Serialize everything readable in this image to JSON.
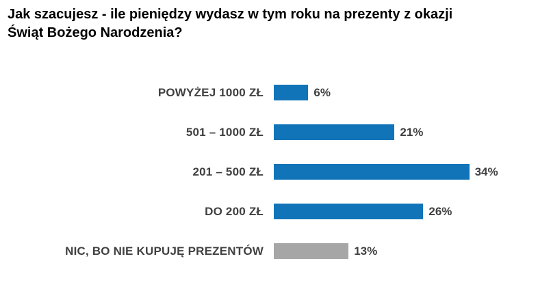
{
  "title": "Jak szacujesz - ile pieniędzy wydasz w tym roku na prezenty z okazji Świąt Bożego Narodzenia?",
  "chart_data": {
    "type": "bar",
    "orientation": "horizontal",
    "title": "Jak szacujesz - ile pieniędzy wydasz w tym roku na prezenty z okazji Świąt Bożego Narodzenia?",
    "categories": [
      "POWYŻEJ 1000 ZŁ",
      "501 – 1000 ZŁ",
      "201 – 500 ZŁ",
      "DO 200 ZŁ",
      "NIC, BO NIE KUPUJĘ PREZENTÓW"
    ],
    "values": [
      6,
      21,
      34,
      26,
      13
    ],
    "value_labels": [
      "6%",
      "21%",
      "34%",
      "26%",
      "13%"
    ],
    "bar_colors": [
      "#1274B8",
      "#1274B8",
      "#1274B8",
      "#1274B8",
      "#A6A6A6"
    ],
    "xlabel": "",
    "ylabel": "",
    "xlim": [
      0,
      34
    ],
    "grid": false,
    "legend": false,
    "axes_visible": false
  },
  "colors": {
    "bar_blue": "#1274B8",
    "bar_gray": "#A6A6A6",
    "label_text": "#404040",
    "title_text": "#000000",
    "background": "#ffffff"
  }
}
